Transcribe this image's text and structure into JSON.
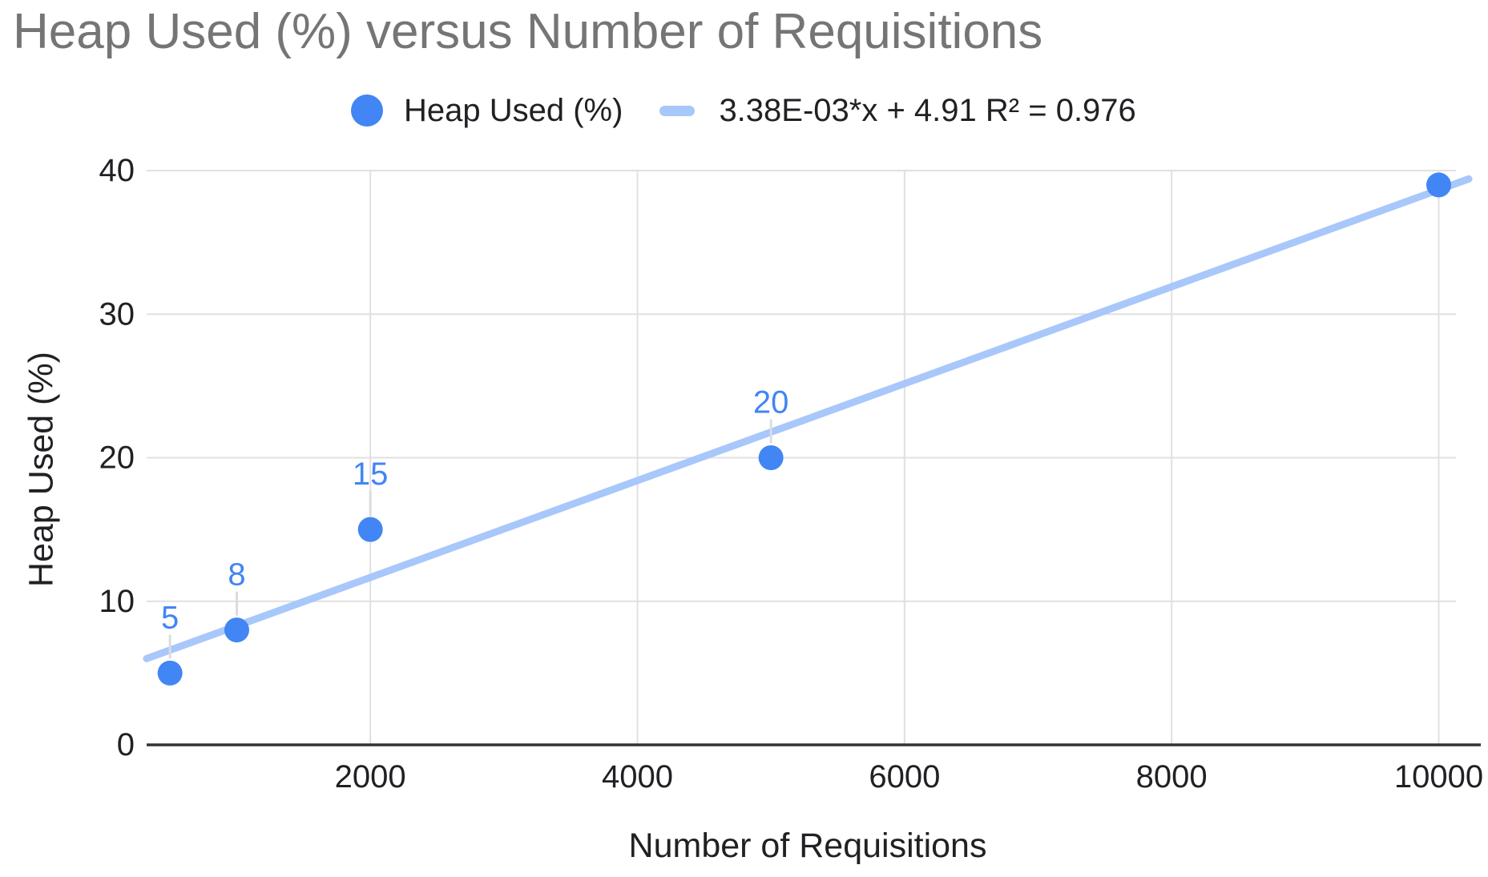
{
  "chart_data": {
    "type": "scatter",
    "title": "Heap Used (%) versus Number of Requisitions",
    "xlabel": "Number of Requisitions",
    "ylabel": "Heap Used (%)",
    "legend_position": "top",
    "grid": true,
    "series": [
      {
        "name": "Heap Used (%)",
        "points": [
          {
            "x": 500,
            "y": 5,
            "label": "5"
          },
          {
            "x": 1000,
            "y": 8,
            "label": "8"
          },
          {
            "x": 2000,
            "y": 15,
            "label": "15"
          },
          {
            "x": 5000,
            "y": 20,
            "label": "20"
          },
          {
            "x": 10000,
            "y": 39,
            "label": ""
          }
        ]
      }
    ],
    "trendline": {
      "label": "3.38E-03*x + 4.91 R² = 0.976",
      "slope": 0.003375,
      "intercept": 4.91,
      "r2": 0.976
    },
    "x_ticks": [
      2000,
      4000,
      6000,
      8000,
      10000
    ],
    "y_ticks": [
      0,
      10,
      20,
      30,
      40
    ],
    "xlim": [
      325,
      10225
    ],
    "ylim": [
      0,
      40
    ],
    "colors": {
      "series": "#4285F4",
      "data_label": "#4285F4",
      "trendline": "#A8C7FA",
      "gridline": "#E0E0E0",
      "axis_line": "#333333",
      "leader_line": "#DADCE0",
      "tick_text": "#202124",
      "title_text": "#757575"
    }
  }
}
